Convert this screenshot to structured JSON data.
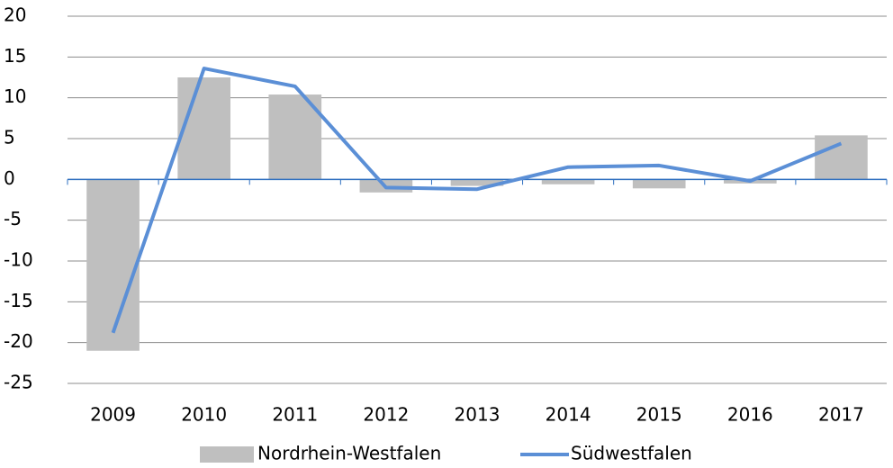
{
  "chart_data": {
    "type": "combo",
    "categories": [
      "2009",
      "2010",
      "2011",
      "2012",
      "2013",
      "2014",
      "2015",
      "2016",
      "2017"
    ],
    "series": [
      {
        "name": "Nordrhein-Westfalen",
        "type": "bar",
        "color": "#bfbfbf",
        "values": [
          -21.0,
          12.5,
          10.4,
          -1.6,
          -0.8,
          -0.6,
          -1.1,
          -0.5,
          5.4
        ]
      },
      {
        "name": "Südwestfalen",
        "type": "line",
        "color": "#5b8fd6",
        "values": [
          -18.8,
          13.6,
          11.4,
          -1.0,
          -1.2,
          1.5,
          1.7,
          -0.2,
          4.4
        ]
      }
    ],
    "ylim": [
      -25,
      20
    ],
    "yticks": [
      -25,
      -20,
      -15,
      -10,
      -5,
      0,
      5,
      10,
      15,
      20
    ],
    "grid": true,
    "legend": "bottom"
  }
}
